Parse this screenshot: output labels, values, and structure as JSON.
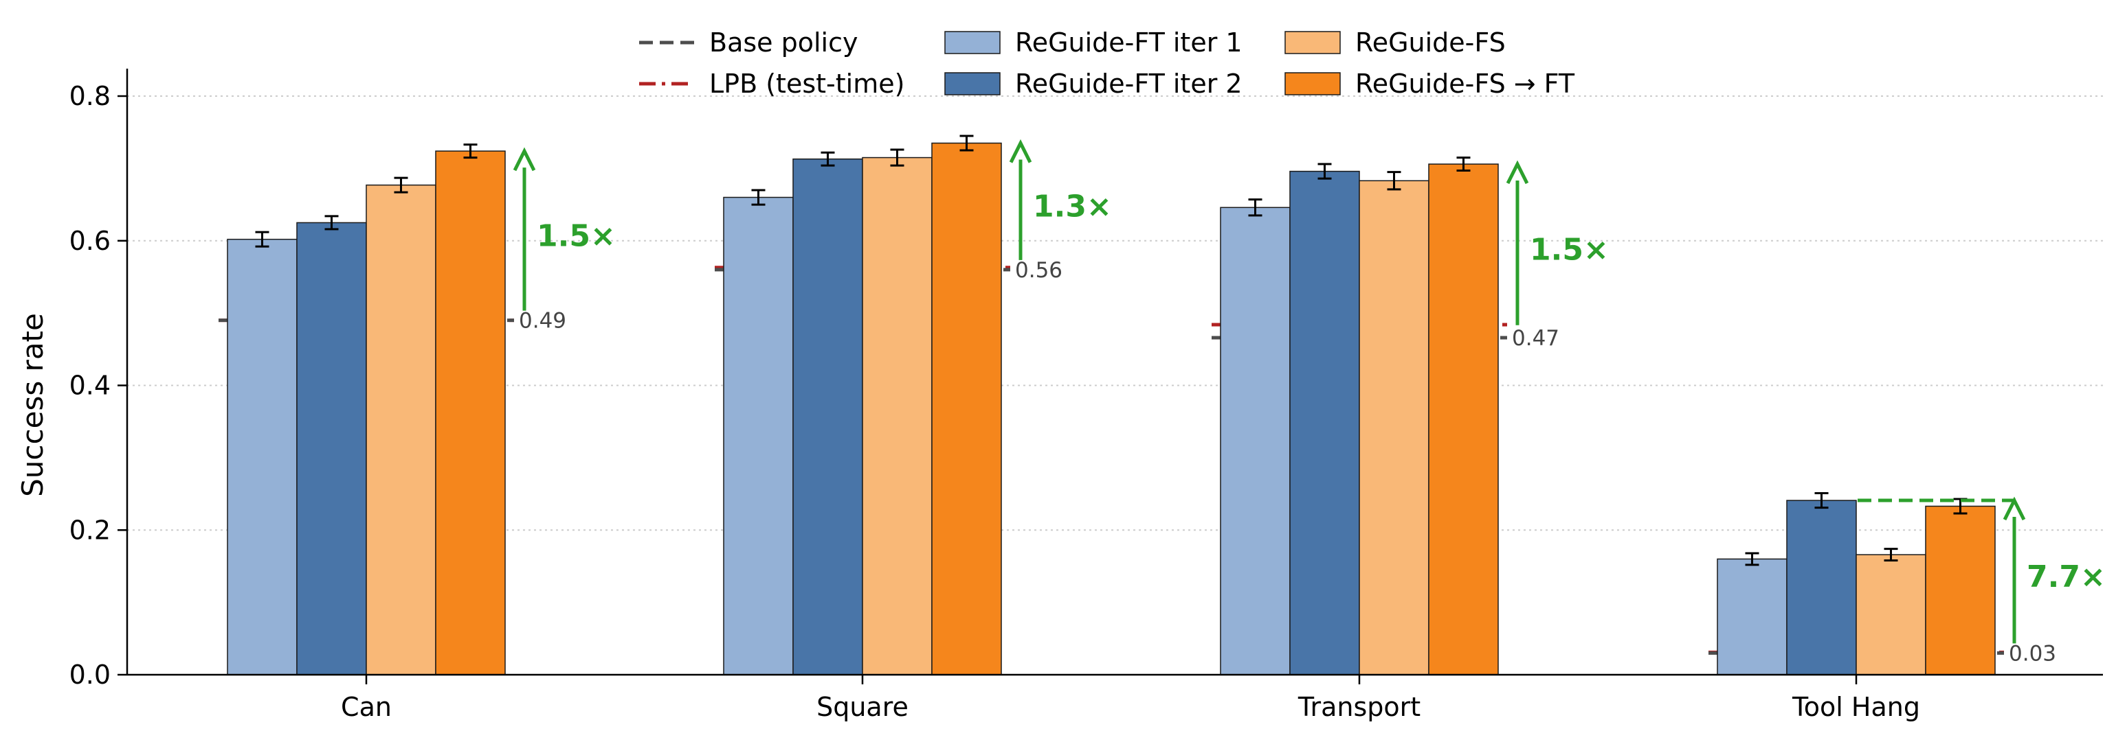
{
  "chart_data": {
    "type": "bar",
    "xlabel": "",
    "ylabel": "Success rate",
    "ylim": [
      0,
      0.8
    ],
    "yticks": [
      "0.0",
      "0.2",
      "0.4",
      "0.6",
      "0.8"
    ],
    "grid": "y, dotted",
    "legend_position": "top-center",
    "categories": [
      "Can",
      "Square",
      "Transport",
      "Tool Hang"
    ],
    "series": [
      {
        "name": "ReGuide-FT iter 1",
        "color": "#94b1d6",
        "values": [
          0.602,
          0.66,
          0.646,
          0.16
        ],
        "errors": [
          0.01,
          0.01,
          0.011,
          0.008
        ]
      },
      {
        "name": "ReGuide-FT iter 2",
        "color": "#4975a8",
        "values": [
          0.625,
          0.713,
          0.696,
          0.241
        ],
        "errors": [
          0.009,
          0.009,
          0.01,
          0.01
        ]
      },
      {
        "name": "ReGuide-FS",
        "color": "#f9b877",
        "values": [
          0.677,
          0.715,
          0.683,
          0.166
        ],
        "errors": [
          0.01,
          0.011,
          0.012,
          0.008
        ]
      },
      {
        "name": "ReGuide-FS → FT",
        "color": "#f5861c",
        "values": [
          0.724,
          0.735,
          0.706,
          0.233
        ],
        "errors": [
          0.009,
          0.01,
          0.009,
          0.01
        ]
      }
    ],
    "reference_lines": [
      {
        "name": "Base policy",
        "style": "dashed",
        "color": "#4d4d4d",
        "values": [
          0.49,
          0.56,
          0.466,
          0.03
        ]
      },
      {
        "name": "LPB (test-time)",
        "style": "dash-dot",
        "color": "#b22222",
        "values": [
          0.49,
          0.563,
          0.484,
          0.031
        ]
      }
    ],
    "reference_labels": [
      "0.49",
      "0.56",
      "0.47",
      "0.03"
    ],
    "gains": [
      {
        "label": "1.5×",
        "from": 0.49,
        "to": 0.724
      },
      {
        "label": "1.3×",
        "from": 0.56,
        "to": 0.735
      },
      {
        "label": "1.5×",
        "from": 0.47,
        "to": 0.706
      },
      {
        "label": "7.7×",
        "from": 0.03,
        "to": 0.241
      }
    ],
    "gain_color": "#2ca02c"
  }
}
